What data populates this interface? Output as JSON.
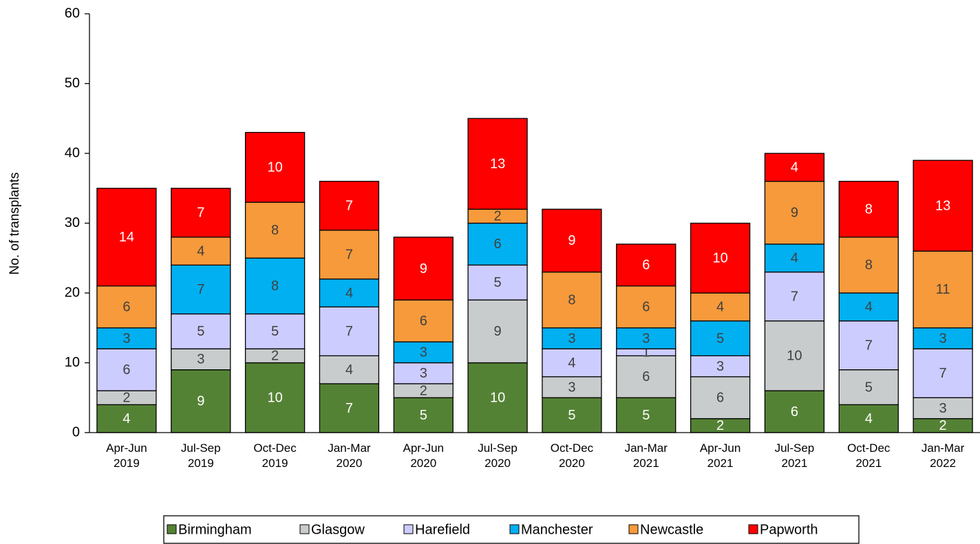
{
  "chart_data": {
    "type": "stacked_bar",
    "y_label": "No. of transplants",
    "categories": [
      "Apr-Jun\n2019",
      "Jul-Sep\n2019",
      "Oct-Dec\n2019",
      "Jan-Mar\n2020",
      "Apr-Jun\n2020",
      "Jul-Sep\n2020",
      "Oct-Dec\n2020",
      "Jan-Mar\n2021",
      "Apr-Jun\n2021",
      "Jul-Sep\n2021",
      "Oct-Dec\n2021",
      "Jan-Mar\n2022"
    ],
    "series": [
      {
        "name": "Birmingham",
        "color": "#548235",
        "label_color": "#ffffff",
        "values": [
          4,
          9,
          10,
          7,
          5,
          10,
          5,
          5,
          2,
          6,
          4,
          2
        ]
      },
      {
        "name": "Glasgow",
        "color": "#c8cccc",
        "label_color": "#404040",
        "values": [
          2,
          3,
          2,
          4,
          2,
          9,
          3,
          6,
          6,
          10,
          5,
          3
        ]
      },
      {
        "name": "Harefield",
        "color": "#ccccff",
        "label_color": "#404040",
        "values": [
          6,
          5,
          5,
          7,
          3,
          5,
          4,
          1,
          3,
          7,
          7,
          7
        ]
      },
      {
        "name": "Manchester",
        "color": "#00b0f0",
        "label_color": "#404040",
        "values": [
          3,
          7,
          8,
          4,
          3,
          6,
          3,
          3,
          5,
          4,
          4,
          3
        ]
      },
      {
        "name": "Newcastle",
        "color": "#f79a3b",
        "label_color": "#404040",
        "values": [
          6,
          4,
          8,
          7,
          6,
          2,
          8,
          6,
          4,
          9,
          8,
          11
        ]
      },
      {
        "name": "Papworth",
        "color": "#ff0000",
        "label_color": "#ffffff",
        "values": [
          14,
          7,
          10,
          7,
          9,
          13,
          9,
          6,
          10,
          4,
          8,
          13
        ]
      }
    ],
    "ylim": [
      0,
      60
    ],
    "yticks": [
      0,
      10,
      20,
      30,
      40,
      50,
      60
    ],
    "legend": "bottom"
  }
}
